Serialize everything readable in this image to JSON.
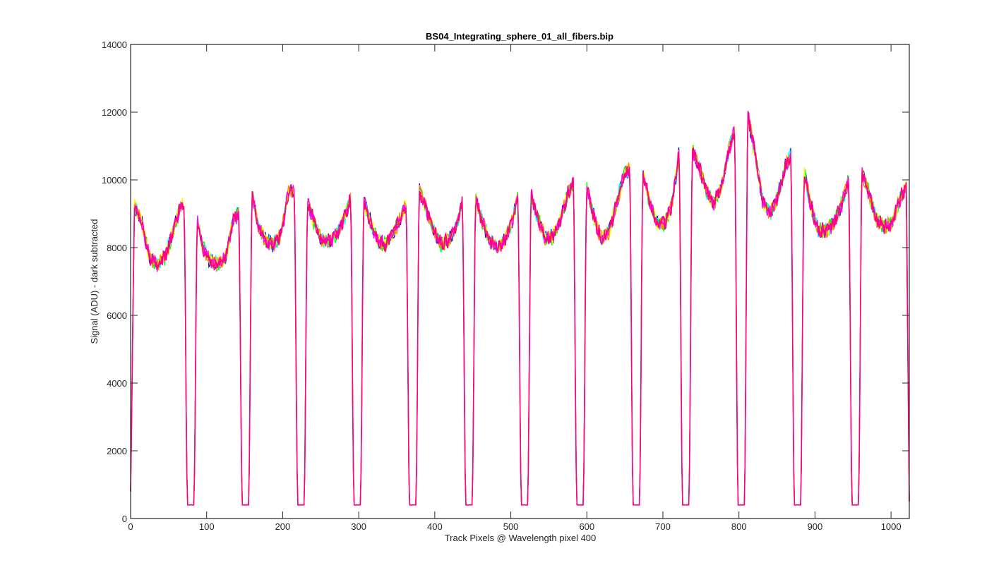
{
  "chart_data": {
    "type": "line",
    "title": "BS04_Integrating_sphere_01_all_fibers.bip",
    "xlabel": "Track Pixels @ Wavelength pixel 400",
    "ylabel": "Signal (ADU) - dark subtracted",
    "xlim": [
      0,
      1024
    ],
    "ylim": [
      0,
      14000
    ],
    "xticks": [
      0,
      100,
      200,
      300,
      400,
      500,
      600,
      700,
      800,
      900,
      1000
    ],
    "yticks": [
      0,
      2000,
      4000,
      6000,
      8000,
      10000,
      12000,
      14000
    ],
    "grid": false,
    "legend": "none",
    "series_colors": [
      "#0000ff",
      "#00ffff",
      "#00ff00",
      "#ffff00",
      "#ff8c00",
      "#ff00ff",
      "#ff0080"
    ],
    "gaps_pixel_centers": [
      79,
      151,
      224,
      298,
      371,
      445,
      518,
      591,
      665,
      730,
      803,
      877,
      953
    ],
    "gap_floor": 400,
    "x": [
      0,
      5,
      15,
      25,
      35,
      45,
      55,
      65,
      70,
      86,
      95,
      105,
      115,
      125,
      135,
      144,
      158,
      168,
      178,
      188,
      198,
      208,
      217,
      232,
      242,
      252,
      262,
      272,
      282,
      291,
      305,
      315,
      325,
      335,
      345,
      355,
      364,
      378,
      388,
      398,
      408,
      418,
      428,
      438,
      452,
      462,
      472,
      482,
      492,
      502,
      511,
      525,
      535,
      545,
      555,
      565,
      575,
      584,
      598,
      608,
      618,
      628,
      638,
      648,
      658,
      672,
      682,
      692,
      702,
      712,
      722,
      737,
      747,
      757,
      767,
      777,
      787,
      797,
      811,
      821,
      831,
      841,
      851,
      861,
      870,
      884,
      894,
      904,
      914,
      924,
      934,
      944,
      961,
      971,
      981,
      991,
      1001,
      1011,
      1020,
      1024
    ],
    "series": [
      {
        "values": [
          800,
          9200,
          8700,
          7700,
          7500,
          7700,
          8400,
          9200,
          9300,
          9000,
          8000,
          7600,
          7500,
          7700,
          8800,
          9100,
          9800,
          8600,
          8200,
          8100,
          8400,
          9700,
          9600,
          9400,
          8700,
          8200,
          8200,
          8400,
          8900,
          9600,
          9500,
          8800,
          8200,
          8100,
          8400,
          8900,
          9400,
          9800,
          9200,
          8500,
          8100,
          8200,
          8600,
          9500,
          9600,
          8800,
          8200,
          8000,
          8200,
          8800,
          9700,
          9700,
          8900,
          8300,
          8300,
          8800,
          9600,
          10000,
          9900,
          9000,
          8300,
          8400,
          9200,
          10100,
          10400,
          10300,
          9400,
          8700,
          8700,
          9300,
          10900,
          11000,
          10400,
          9700,
          9300,
          9800,
          10900,
          11700,
          12000,
          10800,
          9400,
          9000,
          9500,
          10400,
          10800,
          10400,
          9300,
          8500,
          8500,
          8700,
          9200,
          10000,
          10300,
          9600,
          8800,
          8600,
          8700,
          9400,
          9800,
          500
        ]
      }
    ]
  }
}
